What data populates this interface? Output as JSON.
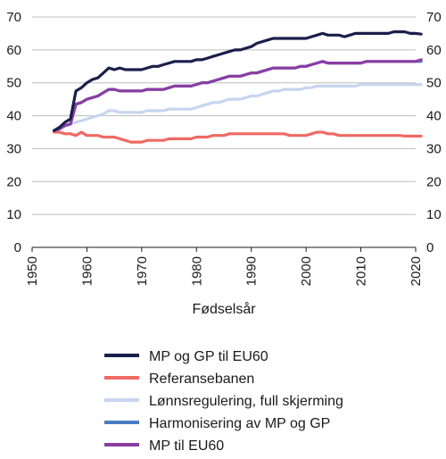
{
  "chart_data": {
    "type": "line",
    "title": "",
    "xlabel": "Fødselsår",
    "ylabel": "",
    "xlim": [
      1950,
      2020
    ],
    "ylim": [
      0,
      70
    ],
    "x_ticks": [
      "1950",
      "1960",
      "1970",
      "1980",
      "1990",
      "2000",
      "2010",
      "2020"
    ],
    "y_ticks": [
      "0",
      "10",
      "20",
      "30",
      "40",
      "50",
      "60",
      "70"
    ],
    "y_axis_right_mirrored": true,
    "grid": "horizontal",
    "legend_position": "bottom",
    "x": [
      1954,
      1955,
      1956,
      1957,
      1958,
      1959,
      1960,
      1961,
      1962,
      1963,
      1964,
      1965,
      1966,
      1967,
      1968,
      1969,
      1970,
      1971,
      1972,
      1973,
      1974,
      1975,
      1976,
      1977,
      1978,
      1979,
      1980,
      1981,
      1982,
      1983,
      1984,
      1985,
      1986,
      1987,
      1988,
      1989,
      1990,
      1991,
      1992,
      1993,
      1994,
      1995,
      1996,
      1997,
      1998,
      1999,
      2000,
      2001,
      2002,
      2003,
      2004,
      2005,
      2006,
      2007,
      2008,
      2009,
      2010,
      2011,
      2012,
      2013,
      2014,
      2015,
      2016,
      2017,
      2018,
      2019,
      2020,
      2021
    ],
    "series": [
      {
        "name": "MP og GP til EU60",
        "color": "#1b1f4b",
        "values": [
          35.5,
          36.5,
          38,
          39,
          47.5,
          48.5,
          50,
          51,
          51.5,
          53,
          54.5,
          54,
          54.5,
          54,
          54,
          54,
          54,
          54.5,
          55,
          55,
          55.5,
          56,
          56.5,
          56.5,
          56.5,
          56.5,
          57,
          57,
          57.5,
          58,
          58.5,
          59,
          59.5,
          60,
          60,
          60.5,
          61,
          62,
          62.5,
          63,
          63.5,
          63.5,
          63.5,
          63.5,
          63.5,
          63.5,
          63.5,
          64,
          64.5,
          65,
          64.5,
          64.5,
          64.5,
          64,
          64.5,
          65,
          65,
          65,
          65,
          65,
          65,
          65,
          65.5,
          65.5,
          65.5,
          65,
          65,
          64.8
        ]
      },
      {
        "name": "Referansebanen",
        "color": "#ef6a63",
        "values": [
          35,
          35,
          34.5,
          34.5,
          34,
          35,
          34,
          34,
          34,
          33.5,
          33.5,
          33.5,
          33,
          32.5,
          32,
          32,
          32,
          32.5,
          32.5,
          32.5,
          32.5,
          33,
          33,
          33,
          33,
          33,
          33.5,
          33.5,
          33.5,
          34,
          34,
          34,
          34.5,
          34.5,
          34.5,
          34.5,
          34.5,
          34.5,
          34.5,
          34.5,
          34.5,
          34.5,
          34.5,
          34,
          34,
          34,
          34,
          34.5,
          35,
          35,
          34.5,
          34.5,
          34,
          34,
          34,
          34,
          34,
          34,
          34,
          34,
          34,
          34,
          34,
          34,
          33.8,
          33.8,
          33.8,
          33.8
        ]
      },
      {
        "name": "Lønnsregulering, full skjerming",
        "color": "#c6d5ef",
        "values": [
          35.5,
          36,
          37,
          37.5,
          38,
          38.5,
          39,
          39.5,
          40,
          40.5,
          41.5,
          41.5,
          41,
          41,
          41,
          41,
          41,
          41.5,
          41.5,
          41.5,
          41.5,
          42,
          42,
          42,
          42,
          42,
          42.5,
          43,
          43.5,
          44,
          44,
          44.5,
          45,
          45,
          45,
          45.5,
          46,
          46,
          46.5,
          47,
          47.5,
          47.5,
          48,
          48,
          48,
          48,
          48.5,
          48.5,
          49,
          49,
          49,
          49,
          49,
          49,
          49,
          49,
          49.5,
          49.5,
          49.5,
          49.5,
          49.5,
          49.5,
          49.5,
          49.5,
          49.5,
          49.5,
          49.5,
          49.5
        ]
      },
      {
        "name": "Harmonisering av MP og GP",
        "color": "#4a7cc2",
        "values": [
          35.5,
          36,
          37,
          37.5,
          43.5,
          44,
          45,
          45.5,
          46,
          47,
          48,
          48,
          47.5,
          47.5,
          47.5,
          47.5,
          47.5,
          48,
          48,
          48,
          48,
          48.5,
          49,
          49,
          49,
          49,
          49.5,
          50,
          50,
          50.5,
          51,
          51.5,
          52,
          52,
          52,
          52.5,
          53,
          53,
          53.5,
          54,
          54.5,
          54.5,
          54.5,
          54.5,
          54.5,
          55,
          55,
          55.5,
          56,
          56.5,
          56,
          56,
          56,
          56,
          56,
          56,
          56,
          56.5,
          56.5,
          56.5,
          56.5,
          56.5,
          56.5,
          56.5,
          56.5,
          56.5,
          56.5,
          56.5
        ]
      },
      {
        "name": "MP til EU60",
        "color": "#8a3ea3",
        "values": [
          35.5,
          36,
          37,
          37.5,
          43.5,
          44,
          45,
          45.5,
          46,
          47,
          48,
          48,
          47.5,
          47.5,
          47.5,
          47.5,
          47.5,
          48,
          48,
          48,
          48,
          48.5,
          49,
          49,
          49,
          49,
          49.5,
          50,
          50,
          50.5,
          51,
          51.5,
          52,
          52,
          52,
          52.5,
          53,
          53,
          53.5,
          54,
          54.5,
          54.5,
          54.5,
          54.5,
          54.5,
          55,
          55,
          55.5,
          56,
          56.5,
          56,
          56,
          56,
          56,
          56,
          56,
          56,
          56.5,
          56.5,
          56.5,
          56.5,
          56.5,
          56.5,
          56.5,
          56.5,
          56.5,
          56.5,
          57
        ]
      }
    ]
  }
}
